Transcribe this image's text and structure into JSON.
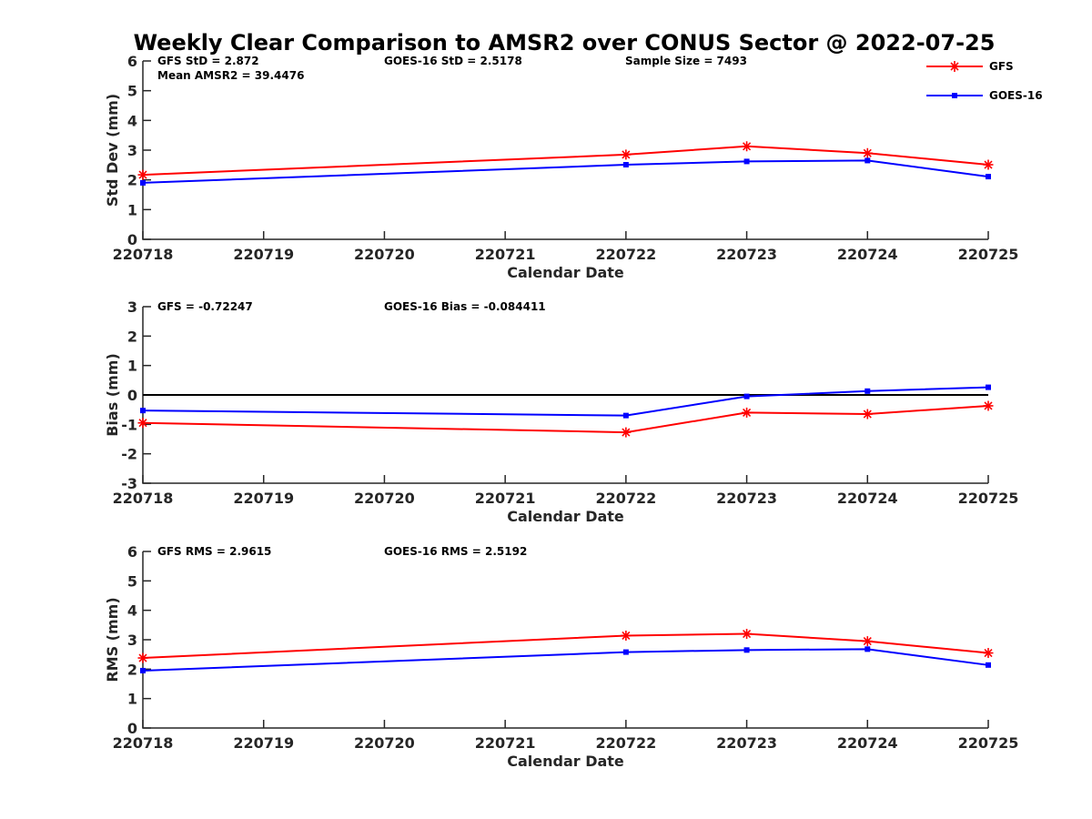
{
  "figure": {
    "title": "Weekly Clear Comparison to AMSR2 over CONUS Sector @ 2022-07-25"
  },
  "legend": {
    "placement": "top-right",
    "entries": [
      {
        "name": "GFS",
        "color": "#ff0000",
        "marker": "asterisk"
      },
      {
        "name": "GOES-16",
        "color": "#0000ff",
        "marker": "square"
      }
    ]
  },
  "chart_data": [
    {
      "type": "line",
      "id": "std",
      "xlabel": "Calendar Date",
      "ylabel": "Std Dev (mm)",
      "ylim": [
        0,
        6
      ],
      "yticks": [
        "0",
        "1",
        "2",
        "3",
        "4",
        "5",
        "6"
      ],
      "categories": [
        "220718",
        "220719",
        "220720",
        "220721",
        "220722",
        "220723",
        "220724",
        "220725"
      ],
      "zero_line": false,
      "annotations": [
        {
          "text": "GFS StD = 2.872",
          "anchor": "left"
        },
        {
          "text": "Mean AMSR2 = 39.4476",
          "anchor": "left-second-line"
        },
        {
          "text": "GOES-16 StD = 2.5178",
          "anchor": "middle"
        },
        {
          "text": "Sample Size = 7493",
          "anchor": "right"
        }
      ],
      "series": [
        {
          "name": "GFS",
          "x": [
            0,
            4,
            5,
            6,
            7
          ],
          "y": [
            2.17,
            2.85,
            3.13,
            2.9,
            2.51
          ]
        },
        {
          "name": "GOES-16",
          "x": [
            0,
            4,
            5,
            6,
            7
          ],
          "y": [
            1.9,
            2.51,
            2.62,
            2.65,
            2.11
          ]
        }
      ]
    },
    {
      "type": "line",
      "id": "bias",
      "xlabel": "Calendar Date",
      "ylabel": "Bias (mm)",
      "ylim": [
        -3,
        3
      ],
      "yticks": [
        "-3",
        "-2",
        "-1",
        "0",
        "1",
        "2",
        "3"
      ],
      "categories": [
        "220718",
        "220719",
        "220720",
        "220721",
        "220722",
        "220723",
        "220724",
        "220725"
      ],
      "zero_line": true,
      "annotations": [
        {
          "text": "GFS = -0.72247",
          "anchor": "left"
        },
        {
          "text": "GOES-16 Bias  = -0.084411",
          "anchor": "middle"
        }
      ],
      "series": [
        {
          "name": "GFS",
          "x": [
            0,
            4,
            5,
            6,
            7
          ],
          "y": [
            -0.95,
            -1.27,
            -0.6,
            -0.65,
            -0.37
          ]
        },
        {
          "name": "GOES-16",
          "x": [
            0,
            4,
            5,
            6,
            7
          ],
          "y": [
            -0.53,
            -0.7,
            -0.05,
            0.13,
            0.26
          ]
        }
      ]
    },
    {
      "type": "line",
      "id": "rms",
      "xlabel": "Calendar Date",
      "ylabel": "RMS (mm)",
      "ylim": [
        0,
        6
      ],
      "yticks": [
        "0",
        "1",
        "2",
        "3",
        "4",
        "5",
        "6"
      ],
      "categories": [
        "220718",
        "220719",
        "220720",
        "220721",
        "220722",
        "220723",
        "220724",
        "220725"
      ],
      "zero_line": false,
      "annotations": [
        {
          "text": "GFS RMS = 2.9615",
          "anchor": "left"
        },
        {
          "text": "GOES-16 RMS = 2.5192",
          "anchor": "middle"
        }
      ],
      "series": [
        {
          "name": "GFS",
          "x": [
            0,
            4,
            5,
            6,
            7
          ],
          "y": [
            2.38,
            3.14,
            3.2,
            2.95,
            2.55
          ]
        },
        {
          "name": "GOES-16",
          "x": [
            0,
            4,
            5,
            6,
            7
          ],
          "y": [
            1.95,
            2.58,
            2.65,
            2.68,
            2.14
          ]
        }
      ]
    }
  ]
}
